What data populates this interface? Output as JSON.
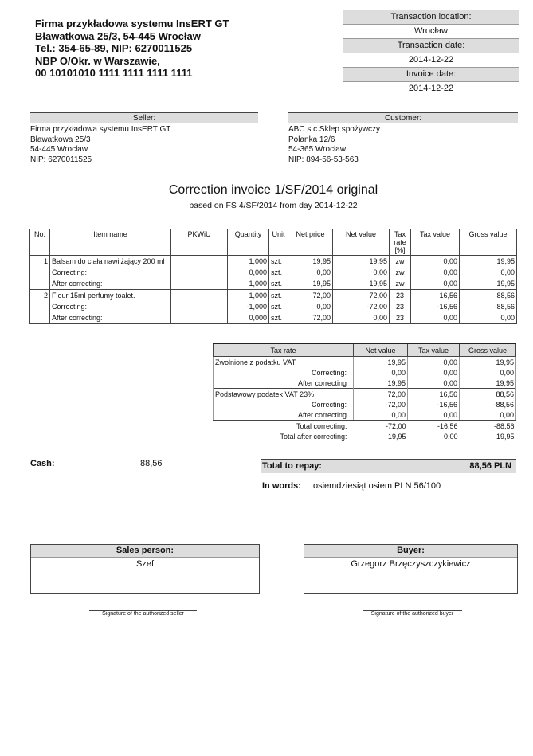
{
  "issuer": {
    "lines": [
      "Firma przykładowa systemu InsERT GT",
      "Bławatkowa 25/3, 54-445 Wrocław",
      "Tel.: 354-65-89, NIP: 6270011525",
      "NBP O/Okr. w Warszawie,",
      "00 10101010 1111 1111 1111 1111"
    ]
  },
  "transaction": {
    "location_label": "Transaction location:",
    "location": "Wrocław",
    "date_label": "Transaction date:",
    "date": "2014-12-22",
    "invoice_date_label": "Invoice date:",
    "invoice_date": "2014-12-22"
  },
  "seller": {
    "label": "Seller:",
    "lines": [
      "Firma przykładowa systemu InsERT GT",
      "Bławatkowa 25/3",
      "54-445 Wrocław",
      "NIP: 6270011525"
    ]
  },
  "customer": {
    "label": "Customer:",
    "lines": [
      "ABC s.c.Sklep spożywczy",
      "Polanka 12/6",
      "54-365 Wrocław",
      "NIP: 894-56-53-563"
    ]
  },
  "title": "Correction invoice  1/SF/2014 original",
  "subtitle": "based on FS 4/SF/2014 from day 2014-12-22",
  "items": {
    "headers": [
      "No.",
      "Item name",
      "PKWiU",
      "Quantity",
      "Unit",
      "Net price",
      "Net value",
      "Tax rate [%]",
      "Tax value",
      "Gross value"
    ],
    "rows": [
      [
        "1",
        "Balsam do ciała nawilżający 200 ml",
        "",
        "1,000",
        "szt.",
        "19,95",
        "19,95",
        "zw",
        "0,00",
        "19,95"
      ],
      [
        "",
        "Correcting:",
        "",
        "0,000",
        "szt.",
        "0,00",
        "0,00",
        "zw",
        "0,00",
        "0,00"
      ],
      [
        "",
        "After correcting:",
        "",
        "1,000",
        "szt.",
        "19,95",
        "19,95",
        "zw",
        "0,00",
        "19,95"
      ],
      [
        "2",
        "Fleur 15ml perfumy toalet.",
        "",
        "1,000",
        "szt.",
        "72,00",
        "72,00",
        "23",
        "16,56",
        "88,56"
      ],
      [
        "",
        "Correcting:",
        "",
        "-1,000",
        "szt.",
        "0,00",
        "-72,00",
        "23",
        "-16,56",
        "-88,56"
      ],
      [
        "",
        "After correcting:",
        "",
        "0,000",
        "szt.",
        "72,00",
        "0,00",
        "23",
        "0,00",
        "0,00"
      ]
    ]
  },
  "tax_summary": {
    "headers": [
      "Tax rate",
      "Net value",
      "Tax value",
      "Gross value"
    ],
    "rows": [
      [
        "Zwolnione z podatku VAT",
        "19,95",
        "0,00",
        "19,95"
      ],
      [
        "Correcting:",
        "0,00",
        "0,00",
        "0,00"
      ],
      [
        "After correcting",
        "19,95",
        "0,00",
        "19,95"
      ],
      [
        "Podstawowy podatek VAT 23%",
        "72,00",
        "16,56",
        "88,56"
      ],
      [
        "Correcting:",
        "-72,00",
        "-16,56",
        "-88,56"
      ],
      [
        "After correcting",
        "0,00",
        "0,00",
        "0,00"
      ],
      [
        "Total correcting:",
        "-72,00",
        "-16,56",
        "-88,56"
      ],
      [
        "Total after correcting:",
        "19,95",
        "0,00",
        "19,95"
      ]
    ]
  },
  "payment": {
    "cash_label": "Cash:",
    "cash": "88,56",
    "total_label": "Total to repay:",
    "total": "88,56  PLN",
    "words_label": "In words:",
    "words": "osiemdziesiąt osiem  PLN 56/100"
  },
  "signatures": {
    "sales_label": "Sales person:",
    "sales": "Szef",
    "buyer_label": "Buyer:",
    "buyer": "Grzegorz Brzęczyszczykiewicz",
    "seller_caption": "Signature of the authorized seller",
    "buyer_caption": "Signature of the authorized buyer"
  }
}
